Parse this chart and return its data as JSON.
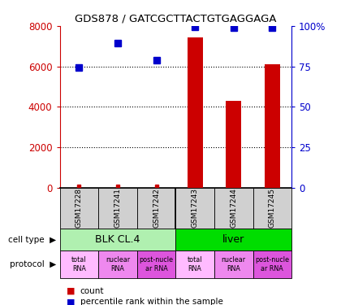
{
  "title": "GDS878 / GATCGCTTACTGTGAGGAGA",
  "samples": [
    "GSM17228",
    "GSM17241",
    "GSM17242",
    "GSM17243",
    "GSM17244",
    "GSM17245"
  ],
  "counts": [
    50,
    60,
    55,
    7450,
    4300,
    6100
  ],
  "percentiles": [
    5950,
    7150,
    6300,
    7950,
    7900,
    7900
  ],
  "left_ylim": [
    0,
    8000
  ],
  "left_yticks": [
    0,
    2000,
    4000,
    6000,
    8000
  ],
  "right_ylim": [
    0,
    100
  ],
  "right_yticks": [
    0,
    25,
    50,
    75,
    100
  ],
  "right_yticklabels": [
    "0",
    "25",
    "50",
    "75",
    "100%"
  ],
  "left_ycolor": "#cc0000",
  "right_ycolor": "#0000cc",
  "cell_types": [
    {
      "label": "BLK CL.4",
      "span": [
        0,
        3
      ],
      "color": "#b0f0b0"
    },
    {
      "label": "liver",
      "span": [
        3,
        6
      ],
      "color": "#00dd00"
    }
  ],
  "protocols": [
    {
      "label": "total\nRNA",
      "span": [
        0,
        1
      ],
      "color": "#ffbbff"
    },
    {
      "label": "nuclear\nRNA",
      "span": [
        1,
        2
      ],
      "color": "#ee88ee"
    },
    {
      "label": "post-nucle\nar RNA",
      "span": [
        2,
        3
      ],
      "color": "#dd55dd"
    },
    {
      "label": "total\nRNA",
      "span": [
        3,
        4
      ],
      "color": "#ffbbff"
    },
    {
      "label": "nuclear\nRNA",
      "span": [
        4,
        5
      ],
      "color": "#ee88ee"
    },
    {
      "label": "post-nucle\nar RNA",
      "span": [
        5,
        6
      ],
      "color": "#dd55dd"
    }
  ],
  "bar_color": "#cc0000",
  "dot_color": "#0000cc",
  "bar_width": 0.4,
  "bg_color": "#ffffff",
  "sample_box_color": "#d0d0d0"
}
